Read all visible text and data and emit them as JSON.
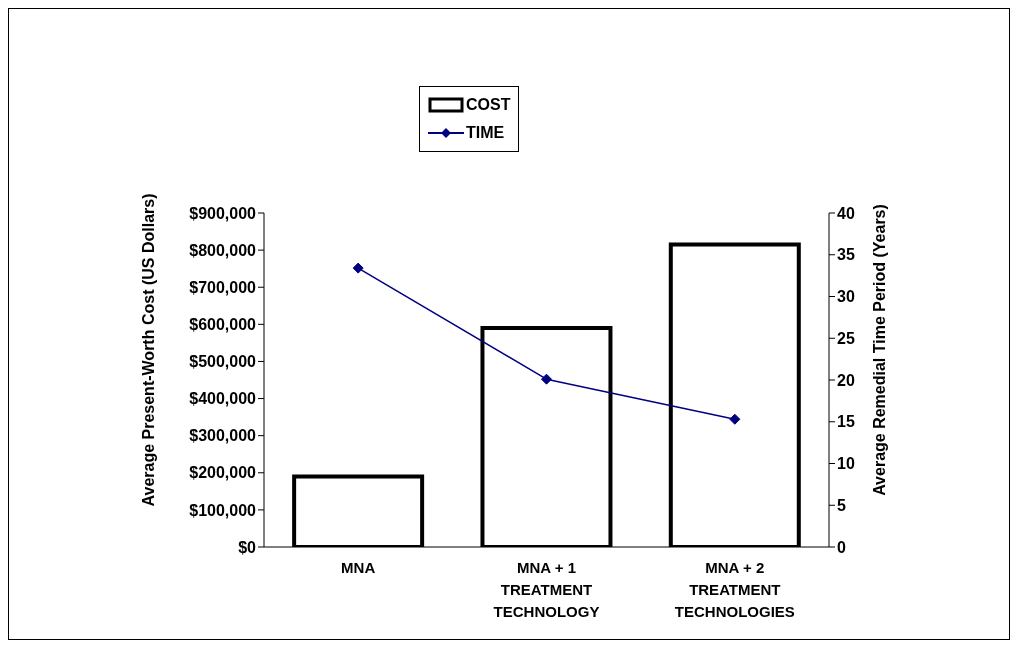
{
  "chart_data": {
    "type": "bar",
    "categories": [
      "MNA",
      "MNA + 1\nTREATMENT\nTECHNOLOGY",
      "MNA + 2\nTREATMENT\nTECHNOLOGIES"
    ],
    "ylabel": "Average Present-Worth Cost (US Dollars)",
    "y2label": "Average Remedial Time Period (Years)",
    "series": [
      {
        "name": "COST",
        "color": "#000000",
        "values": [
          190000,
          590000,
          815000
        ]
      },
      {
        "name": "TIME",
        "type": "line",
        "axis": "y2",
        "color": "#000080",
        "values": [
          33.4,
          20.1,
          15.3
        ]
      }
    ],
    "ylim": [
      0,
      900000
    ],
    "yticks": [
      {
        "value": 0,
        "label": "$0"
      },
      {
        "value": 100000,
        "label": "$100,000"
      },
      {
        "value": 200000,
        "label": "$200,000"
      },
      {
        "value": 300000,
        "label": "$300,000"
      },
      {
        "value": 400000,
        "label": "$400,000"
      },
      {
        "value": 500000,
        "label": "$500,000"
      },
      {
        "value": 600000,
        "label": "$600,000"
      },
      {
        "value": 700000,
        "label": "$700,000"
      },
      {
        "value": 800000,
        "label": "$800,000"
      },
      {
        "value": 900000,
        "label": "$900,000"
      }
    ],
    "y2lim": [
      0,
      40
    ],
    "y2ticks": [
      0,
      5,
      10,
      15,
      20,
      25,
      30,
      35,
      40
    ],
    "grid": false,
    "legend": "top",
    "marker": "diamond",
    "line_style": "solid"
  }
}
